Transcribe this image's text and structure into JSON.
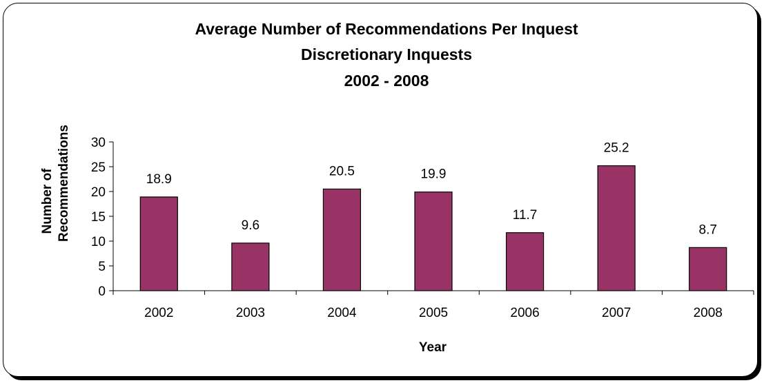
{
  "chart_data": {
    "type": "bar",
    "title_lines": [
      "Average Number of Recommendations Per Inquest",
      "Discretionary Inquests",
      "2002 - 2008"
    ],
    "xlabel": "Year",
    "ylabel_lines": [
      "Number of",
      "Recommendations"
    ],
    "categories": [
      "2002",
      "2003",
      "2004",
      "2005",
      "2006",
      "2007",
      "2008"
    ],
    "values": [
      18.9,
      9.6,
      20.5,
      19.9,
      11.7,
      25.2,
      8.7
    ],
    "data_labels": [
      "18.9",
      "9.6",
      "20.5",
      "19.9",
      "11.7",
      "25.2",
      "8.7"
    ],
    "ylim": [
      0,
      30
    ],
    "yticks": [
      0,
      5,
      10,
      15,
      20,
      25,
      30
    ],
    "bar_color": "#993366",
    "grid": false,
    "legend": "none"
  }
}
